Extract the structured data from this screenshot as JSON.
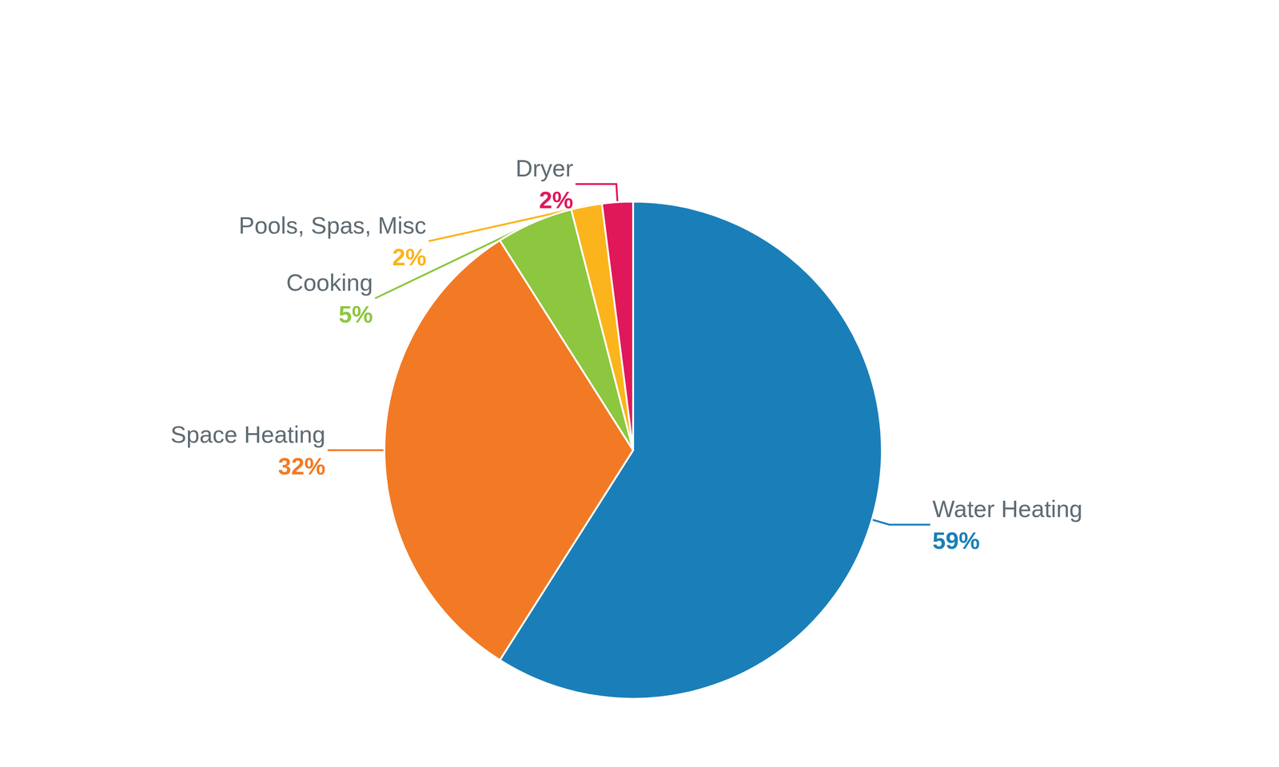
{
  "chart_data": {
    "type": "pie",
    "categories": [
      "Water Heating",
      "Space Heating",
      "Cooking",
      "Pools, Spas, Misc",
      "Dryer"
    ],
    "values": [
      59,
      32,
      5,
      2,
      2
    ],
    "value_labels": [
      "59%",
      "32%",
      "5%",
      "2%",
      "2%"
    ],
    "colors": [
      "#1a7fb8",
      "#f27a24",
      "#8dc63f",
      "#fbb41c",
      "#e0185a"
    ],
    "data_labels": true
  }
}
